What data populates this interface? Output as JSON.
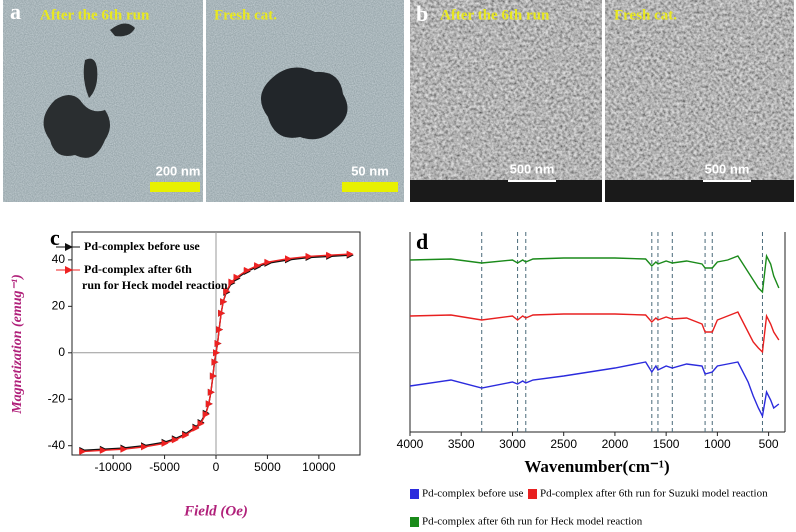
{
  "images": [
    {
      "panel_label": "a",
      "left_caption": "After the 6th run",
      "right_caption": "Fresh cat.",
      "left_scale": "200 nm",
      "right_scale": "50 nm"
    },
    {
      "panel_label": "b",
      "left_caption": "After the 6th run",
      "right_caption": "Fresh cat.",
      "left_scale": "500 nm",
      "right_scale": "500 nm"
    }
  ],
  "chart_data": [
    {
      "type": "line",
      "panel_label": "c",
      "x_label": "Field (Oe)",
      "y_label": "Magnetization (emug⁻¹)",
      "xlim": [
        -14000,
        14000
      ],
      "ylim": [
        -44,
        52
      ],
      "xticks": [
        -10000,
        -5000,
        0,
        5000,
        10000
      ],
      "yticks": [
        -40,
        -20,
        0,
        20,
        40
      ],
      "zero_lines": true,
      "legend": "upper left",
      "x": [
        -13000,
        -11000,
        -9000,
        -7000,
        -5000,
        -4000,
        -3000,
        -2000,
        -1500,
        -1000,
        -700,
        -500,
        -300,
        -150,
        0,
        150,
        300,
        500,
        700,
        1000,
        1500,
        2000,
        3000,
        4000,
        5000,
        7000,
        9000,
        11000,
        13000
      ],
      "series": [
        {
          "name": "Pd-complex before use",
          "color": "#111111",
          "marker": "right",
          "values": [
            -42,
            -41.5,
            -41,
            -40,
            -38.5,
            -37,
            -35,
            -32,
            -30,
            -26,
            -22,
            -17,
            -10,
            -4,
            0,
            4,
            10,
            17,
            22,
            26,
            30,
            32,
            35,
            37,
            38.5,
            40,
            41,
            41.5,
            42
          ]
        },
        {
          "name": "Pd-complex after  6th run for Heck model reaction",
          "color": "#ee2222",
          "marker": "right",
          "values": [
            -42.5,
            -42,
            -41.5,
            -40.5,
            -39,
            -37.5,
            -35.5,
            -32.5,
            -30.5,
            -26.5,
            -22,
            -17,
            -10,
            -4,
            0,
            4,
            10,
            17,
            22,
            26.5,
            30.5,
            32.5,
            35.5,
            37.5,
            39,
            40.5,
            41.5,
            42,
            42.5
          ]
        }
      ]
    },
    {
      "type": "line",
      "panel_label": "d",
      "x_label": "Wavenumber(cm⁻¹)",
      "xlim": [
        4000,
        340
      ],
      "ylim": [
        0,
        100
      ],
      "xticks": [
        4000,
        3500,
        3000,
        2500,
        2000,
        1500,
        1000,
        500
      ],
      "reference_lines": [
        3300,
        2950,
        2870,
        1640,
        1580,
        1440,
        1120,
        1050,
        560
      ],
      "legend": "bottom",
      "x": [
        4000,
        3600,
        3300,
        3000,
        2950,
        2900,
        2870,
        2800,
        2500,
        2000,
        1700,
        1640,
        1600,
        1580,
        1500,
        1440,
        1300,
        1150,
        1120,
        1050,
        1000,
        900,
        800,
        700,
        650,
        600,
        560,
        520,
        480,
        450,
        400
      ],
      "series": [
        {
          "name": "Pd-complex before use",
          "color": "#2b2bdd",
          "values": [
            23,
            26,
            22,
            25,
            24,
            25.5,
            24.5,
            26,
            28,
            32,
            35,
            30,
            33,
            31,
            33,
            32,
            34,
            33,
            29,
            30,
            33,
            34,
            35,
            25,
            18,
            12,
            8,
            20,
            16,
            12,
            14
          ]
        },
        {
          "name": "Pd-complex after 6th run for  Suzuki model reaction",
          "color": "#e82020",
          "values": [
            58,
            58.5,
            56,
            58,
            56,
            58,
            57,
            58.5,
            59,
            59,
            58.5,
            55,
            57,
            56,
            57.5,
            56.5,
            57,
            54,
            50,
            50,
            56,
            58,
            60,
            50,
            45,
            42,
            40,
            58,
            54,
            50,
            46
          ]
        },
        {
          "name": "Pd-complex after 6th run for Heck model reaction",
          "color": "#1a8a1a",
          "values": [
            86,
            86.5,
            84.5,
            86,
            84.5,
            86,
            85,
            86.5,
            87,
            87,
            86.5,
            83,
            85,
            84,
            85.5,
            84.5,
            85.5,
            84,
            82,
            82,
            85,
            86,
            88,
            80,
            76,
            72,
            70,
            88,
            84,
            78,
            72
          ]
        }
      ]
    }
  ]
}
